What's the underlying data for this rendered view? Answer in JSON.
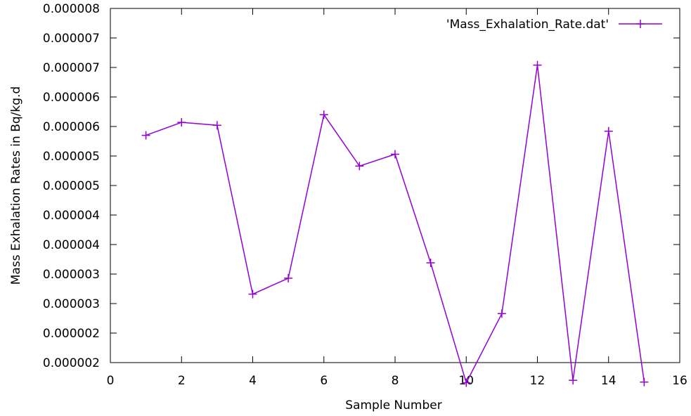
{
  "chart_data": {
    "type": "line",
    "title": "",
    "xlabel": "Sample Number",
    "ylabel": "Mass Exhalation Rates in Bq/kg.d",
    "xlim": [
      0,
      16
    ],
    "ylim": [
      1.5e-06,
      7.5e-06
    ],
    "x_ticks": [
      0,
      2,
      4,
      6,
      8,
      10,
      12,
      14,
      16
    ],
    "x_tick_labels": [
      "0",
      "2",
      "4",
      "6",
      "8",
      "10",
      "12",
      "14",
      "16"
    ],
    "y_ticks": [
      1.5e-06,
      2e-06,
      2.5e-06,
      3e-06,
      3.5e-06,
      4e-06,
      4.5e-06,
      5e-06,
      5.5e-06,
      6e-06,
      6.5e-06,
      7e-06,
      7.5e-06
    ],
    "y_tick_labels": [
      "0.000002",
      "0.000002",
      "0.000003",
      "0.000003",
      "0.000004",
      "0.000004",
      "0.000005",
      "0.000005",
      "0.000006",
      "0.000006",
      "0.000007",
      "0.000007",
      "0.000008"
    ],
    "grid": false,
    "legend_position": "top-right",
    "series": [
      {
        "name": "'Mass_Exhalation_Rate.dat'",
        "color": "#9400d3",
        "marker": "plus",
        "x": [
          1,
          2,
          3,
          4,
          5,
          6,
          7,
          8,
          9,
          10,
          11,
          12,
          13,
          14,
          15
        ],
        "y": [
          5.35e-06,
          5.57e-06,
          5.52e-06,
          2.66e-06,
          2.93e-06,
          5.7e-06,
          4.83e-06,
          5.03e-06,
          3.19e-06,
          1.16e-06,
          2.33e-06,
          6.54e-06,
          1.2e-06,
          5.42e-06,
          1.17e-06
        ]
      }
    ]
  }
}
